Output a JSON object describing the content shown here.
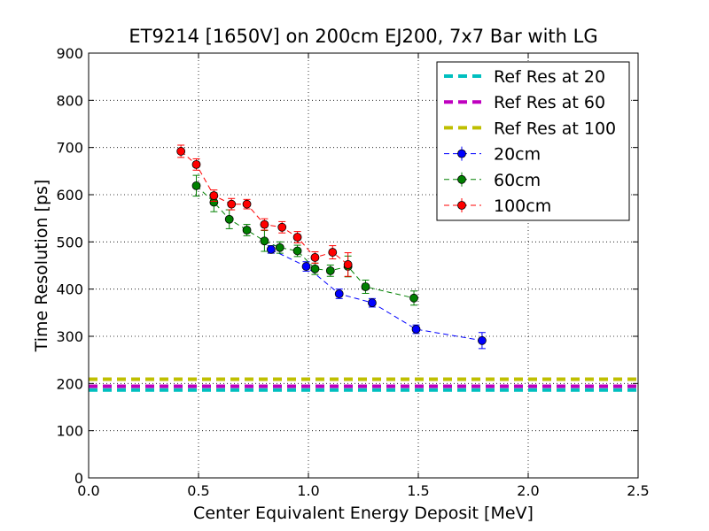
{
  "chart_data": {
    "type": "scatter",
    "title": "ET9214 [1650V] on 200cm EJ200, 7x7 Bar with LG",
    "xlabel": "Center Equivalent Energy Deposit [MeV]",
    "ylabel": "Time Resolution [ps]",
    "xlim": [
      0.0,
      2.5
    ],
    "ylim": [
      0,
      900
    ],
    "xticks": [
      0.0,
      0.5,
      1.0,
      1.5,
      2.0,
      2.5
    ],
    "xtick_labels": [
      "0.0",
      "0.5",
      "1.0",
      "1.5",
      "2.0",
      "2.5"
    ],
    "yticks": [
      0,
      100,
      200,
      300,
      400,
      500,
      600,
      700,
      800,
      900
    ],
    "ytick_labels": [
      "0",
      "100",
      "200",
      "300",
      "400",
      "500",
      "600",
      "700",
      "800",
      "900"
    ],
    "grid": true,
    "legend_position": "top-right",
    "reference_lines": [
      {
        "name": "Ref Res at 20",
        "y": 186,
        "color": "#00bfbf"
      },
      {
        "name": "Ref Res at 60",
        "y": 194,
        "color": "#bf00bf"
      },
      {
        "name": "Ref Res at 100",
        "y": 209,
        "color": "#bfbf00"
      }
    ],
    "series": [
      {
        "name": "20cm",
        "color": "#0000ff",
        "points": [
          {
            "x": 0.83,
            "y": 484,
            "err": 8
          },
          {
            "x": 0.99,
            "y": 448,
            "err": 10
          },
          {
            "x": 1.14,
            "y": 390,
            "err": 10
          },
          {
            "x": 1.29,
            "y": 371,
            "err": 9
          },
          {
            "x": 1.49,
            "y": 315,
            "err": 9
          },
          {
            "x": 1.79,
            "y": 291,
            "err": 17
          }
        ]
      },
      {
        "name": "60cm",
        "color": "#008000",
        "points": [
          {
            "x": 0.49,
            "y": 619,
            "err": 22
          },
          {
            "x": 0.57,
            "y": 584,
            "err": 20
          },
          {
            "x": 0.64,
            "y": 548,
            "err": 20
          },
          {
            "x": 0.72,
            "y": 525,
            "err": 12
          },
          {
            "x": 0.8,
            "y": 502,
            "err": 22
          },
          {
            "x": 0.87,
            "y": 488,
            "err": 12
          },
          {
            "x": 0.95,
            "y": 481,
            "err": 12
          },
          {
            "x": 1.03,
            "y": 443,
            "err": 12
          },
          {
            "x": 1.1,
            "y": 439,
            "err": 12
          },
          {
            "x": 1.18,
            "y": 448,
            "err": 22
          },
          {
            "x": 1.26,
            "y": 405,
            "err": 14
          },
          {
            "x": 1.48,
            "y": 381,
            "err": 15
          }
        ]
      },
      {
        "name": "100cm",
        "color": "#ff0000",
        "points": [
          {
            "x": 0.42,
            "y": 692,
            "err": 13
          },
          {
            "x": 0.49,
            "y": 664,
            "err": 12
          },
          {
            "x": 0.57,
            "y": 598,
            "err": 12
          },
          {
            "x": 0.65,
            "y": 580,
            "err": 12
          },
          {
            "x": 0.72,
            "y": 580,
            "err": 10
          },
          {
            "x": 0.8,
            "y": 537,
            "err": 12
          },
          {
            "x": 0.88,
            "y": 531,
            "err": 12
          },
          {
            "x": 0.95,
            "y": 510,
            "err": 12
          },
          {
            "x": 1.03,
            "y": 467,
            "err": 12
          },
          {
            "x": 1.11,
            "y": 478,
            "err": 14
          },
          {
            "x": 1.18,
            "y": 452,
            "err": 25
          }
        ]
      }
    ]
  }
}
